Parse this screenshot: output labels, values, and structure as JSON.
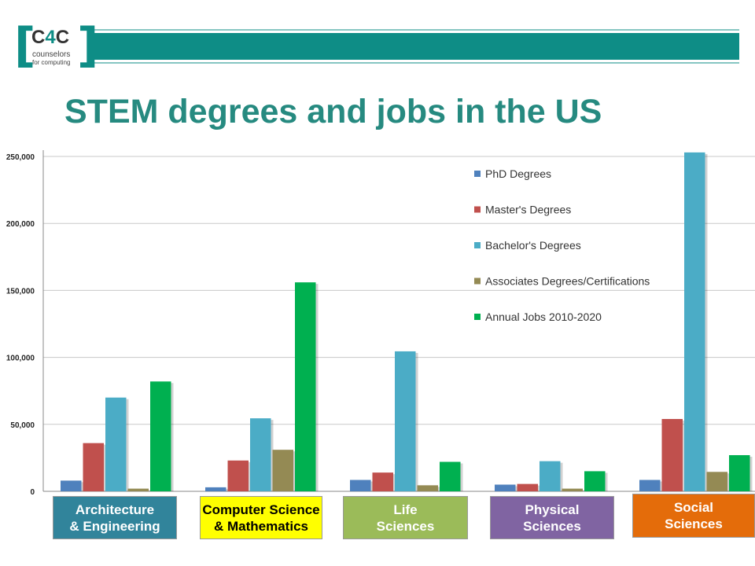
{
  "logo": {
    "main_left": "C",
    "main_four": "4",
    "main_right": "C",
    "sub1": "counselors",
    "sub2": "for computing"
  },
  "title": "STEM degrees and jobs in the US",
  "colors": {
    "header_band": "#0e8d86",
    "title": "#268a80"
  },
  "chart_data": {
    "type": "bar",
    "categories": [
      "Architecture & Engineering",
      "Computer Science & Mathematics",
      "Life Sciences",
      "Physical Sciences",
      "Social Sciences"
    ],
    "category_labels": [
      {
        "text": "Architecture\n& Engineering",
        "bg": "#31849b",
        "fg": "#ffffff"
      },
      {
        "text": "Computer Science\n& Mathematics",
        "bg": "#ffff00",
        "fg": "#000000"
      },
      {
        "text": "Life\nSciences",
        "bg": "#9bbb59",
        "fg": "#ffffff"
      },
      {
        "text": "Physical\nSciences",
        "bg": "#8064a2",
        "fg": "#ffffff"
      },
      {
        "text": "Social\nSciences",
        "bg": "#e46c0a",
        "fg": "#ffffff"
      }
    ],
    "series": [
      {
        "name": "PhD Degrees",
        "color": "#4f81bd",
        "values": [
          8000,
          3000,
          8500,
          5000,
          8500
        ]
      },
      {
        "name": "Master's Degrees",
        "color": "#c0504d",
        "values": [
          36000,
          23000,
          14000,
          5500,
          54000
        ]
      },
      {
        "name": "Bachelor's Degrees",
        "color": "#4bacc6",
        "values": [
          70000,
          54500,
          104500,
          22500,
          253000
        ]
      },
      {
        "name": "Associates Degrees/Certifications",
        "color": "#948a54",
        "values": [
          2000,
          31000,
          4500,
          2000,
          14500
        ]
      },
      {
        "name": "Annual Jobs 2010-2020",
        "color": "#00b050",
        "values": [
          82000,
          156000,
          22000,
          15000,
          27000
        ]
      }
    ],
    "yticks": [
      "0",
      "50,000",
      "100,000",
      "150,000",
      "200,000",
      "250,000"
    ],
    "ylim": [
      0,
      250000
    ],
    "grid": true,
    "legend": "top-right"
  }
}
